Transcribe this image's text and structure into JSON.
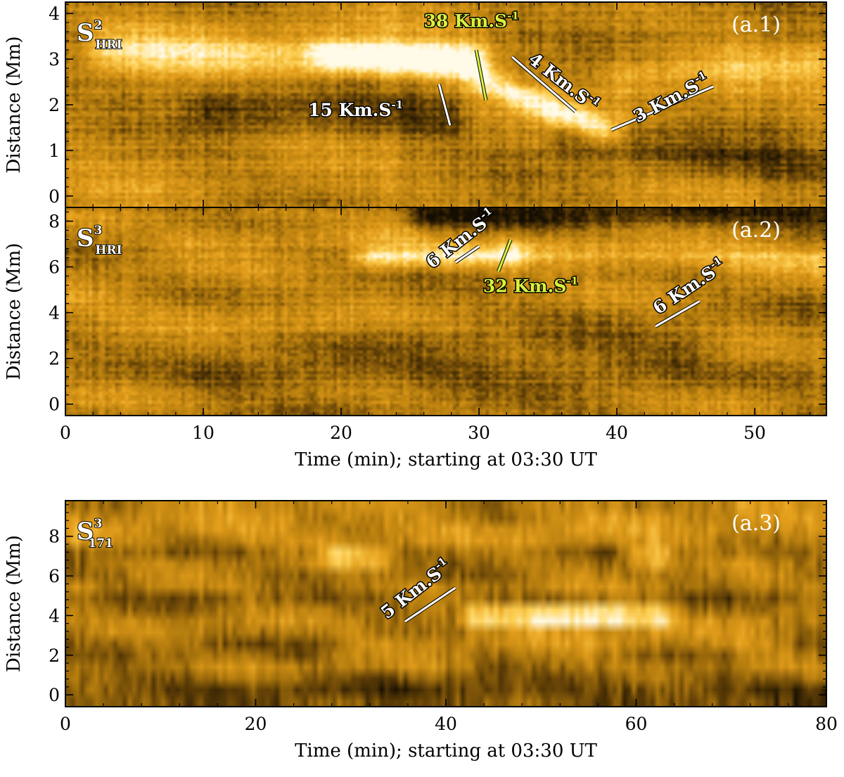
{
  "chart_data": [
    {
      "type": "heatmap",
      "panel_label": "(a.1)",
      "name": {
        "base": "S",
        "sup": "2",
        "sub": "HRI"
      },
      "xlim": [
        0,
        55.2
      ],
      "ylim": [
        -0.25,
        4.25
      ],
      "yticks": [
        0,
        1,
        2,
        3,
        4
      ],
      "xticks": [
        0,
        10,
        20,
        30,
        40,
        50
      ],
      "xticklabels": [],
      "ylabel": "Distance (Mm)",
      "xlabel": "",
      "colormap": [
        "#140d02",
        "#5c3c06",
        "#b57d0e",
        "#e6a01c",
        "#ffd45a",
        "#fffbe8"
      ],
      "background_level": 0.45,
      "features": [
        {
          "x0": 3,
          "x1": 30,
          "y0": 3.2,
          "y1": 2.9,
          "w": 0.45,
          "a": 0.35
        },
        {
          "x0": 19,
          "x1": 29,
          "y0": 3.1,
          "y1": 2.95,
          "w": 0.35,
          "a": 0.5
        },
        {
          "x0": 30.5,
          "x1": 39,
          "y0": 2.5,
          "y1": 1.45,
          "w": 0.3,
          "a": 0.45
        },
        {
          "x0": 10,
          "x1": 28,
          "y0": 1.9,
          "y1": 1.7,
          "w": 0.5,
          "a": -0.25
        },
        {
          "x0": 36,
          "x1": 55,
          "y0": 1.2,
          "y1": 0.6,
          "w": 0.4,
          "a": -0.2
        },
        {
          "x0": 40,
          "x1": 55,
          "y0": 2.6,
          "y1": 2.9,
          "w": 0.4,
          "a": 0.2
        }
      ],
      "annotations": [
        {
          "value": "15",
          "unit": "Km.S",
          "sup": "-1",
          "color": "#ffffff",
          "x": 17.6,
          "y": 1.75,
          "angle": 0,
          "line": [
            27.1,
            2.45,
            27.9,
            1.55
          ]
        },
        {
          "value": "38",
          "unit": "Km.S",
          "sup": "-1",
          "color": "#d7f23c",
          "x": 26.0,
          "y": 3.7,
          "angle": 0,
          "line": [
            29.8,
            3.2,
            30.5,
            2.1
          ]
        },
        {
          "value": "4",
          "unit": "Km.S",
          "sup": "-1",
          "color": "#ffffff",
          "x": 33.5,
          "y": 2.95,
          "angle": 38,
          "line": [
            32.4,
            3.05,
            37.0,
            1.85
          ]
        },
        {
          "value": "3",
          "unit": "Km.S",
          "sup": "-1",
          "color": "#ffffff",
          "x": 41.5,
          "y": 1.6,
          "angle": -28,
          "line": [
            39.6,
            1.45,
            47.0,
            2.4
          ]
        }
      ]
    },
    {
      "type": "heatmap",
      "panel_label": "(a.2)",
      "name": {
        "base": "S",
        "sup": "3",
        "sub": "HRI"
      },
      "xlim": [
        0,
        55.2
      ],
      "ylim": [
        -0.5,
        8.6
      ],
      "yticks": [
        0,
        2,
        4,
        6,
        8
      ],
      "xticks": [
        0,
        10,
        20,
        30,
        40,
        50
      ],
      "xticklabels": [
        "0",
        "10",
        "20",
        "30",
        "40",
        "50"
      ],
      "ylabel": "Distance (Mm)",
      "xlabel": "Time (min); starting at 03:30 UT",
      "colormap": [
        "#140d02",
        "#5c3c06",
        "#b57d0e",
        "#e6a01c",
        "#ffd45a",
        "#fffbe8"
      ],
      "background_level": 0.42,
      "features": [
        {
          "x0": 22,
          "x1": 32,
          "y0": 6.4,
          "y1": 6.5,
          "w": 0.45,
          "a": 0.45
        },
        {
          "x0": 33,
          "x1": 55,
          "y0": 6.6,
          "y1": 6.4,
          "w": 0.55,
          "a": 0.3
        },
        {
          "x0": 8,
          "x1": 25,
          "y0": 7.2,
          "y1": 7.4,
          "w": 0.6,
          "a": 0.15
        },
        {
          "x0": 26,
          "x1": 55,
          "y0": 8.2,
          "y1": 8.3,
          "w": 0.5,
          "a": -0.35
        },
        {
          "x0": 0,
          "x1": 20,
          "y0": 4.5,
          "y1": 3.5,
          "w": 0.7,
          "a": 0.12
        },
        {
          "x0": 10,
          "x1": 45,
          "y0": 1.2,
          "y1": 2.0,
          "w": 0.9,
          "a": -0.15
        }
      ],
      "annotations": [
        {
          "value": "6",
          "unit": "Km.S",
          "sup": "-1",
          "color": "#ffffff",
          "x": 26.6,
          "y": 5.9,
          "angle": -38,
          "line": [
            28.3,
            6.2,
            30.0,
            6.9
          ]
        },
        {
          "value": "32",
          "unit": "Km.S",
          "sup": "-1",
          "color": "#d7f23c",
          "x": 30.3,
          "y": 4.9,
          "angle": 0,
          "line": [
            31.4,
            5.8,
            32.3,
            7.2
          ]
        },
        {
          "value": "6",
          "unit": "Km.S",
          "sup": "-1",
          "color": "#ffffff",
          "x": 43.0,
          "y": 3.9,
          "angle": -34,
          "line": [
            42.8,
            3.4,
            46.0,
            4.5
          ]
        }
      ]
    },
    {
      "type": "heatmap",
      "panel_label": "(a.3)",
      "name": {
        "base": "S",
        "sup": "3",
        "sub": "171"
      },
      "xlim": [
        0,
        80
      ],
      "ylim": [
        -0.6,
        9.8
      ],
      "yticks": [
        0,
        2,
        4,
        6,
        8
      ],
      "xticks": [
        0,
        20,
        40,
        60,
        80
      ],
      "xticklabels": [
        "0",
        "20",
        "40",
        "60",
        "80"
      ],
      "ylabel": "Distance (Mm)",
      "xlabel": "Time (min); starting at 03:30 UT",
      "colormap": [
        "#140d02",
        "#5c3c06",
        "#b57d0e",
        "#e6a01c",
        "#ffd45a",
        "#fffbe8"
      ],
      "background_level": 0.38,
      "features": [
        {
          "x0": 43,
          "x1": 63,
          "y0": 4.0,
          "y1": 4.0,
          "w": 0.55,
          "a": 0.5
        },
        {
          "x0": 50,
          "x1": 58,
          "y0": 4.0,
          "y1": 4.0,
          "w": 0.4,
          "a": 0.35
        },
        {
          "x0": 28,
          "x1": 33,
          "y0": 7.0,
          "y1": 7.0,
          "w": 0.5,
          "a": 0.35
        },
        {
          "x0": 60,
          "x1": 63,
          "y0": 7.0,
          "y1": 7.0,
          "w": 0.6,
          "a": 0.4
        },
        {
          "x0": 0,
          "x1": 80,
          "y0": 8.5,
          "y1": 8.5,
          "w": 0.9,
          "a": 0.15
        },
        {
          "x0": 0,
          "x1": 80,
          "y0": 0.0,
          "y1": 0.0,
          "w": 0.5,
          "a": -0.25
        },
        {
          "x0": 30,
          "x1": 75,
          "y0": 2.6,
          "y1": 2.6,
          "w": 0.5,
          "a": 0.15
        }
      ],
      "annotations": [
        {
          "value": "5",
          "unit": "Km.S",
          "sup": "-1",
          "color": "#ffffff",
          "x": 33.8,
          "y": 3.8,
          "angle": -38,
          "line": [
            35.7,
            3.7,
            41.0,
            5.4
          ]
        }
      ]
    }
  ]
}
